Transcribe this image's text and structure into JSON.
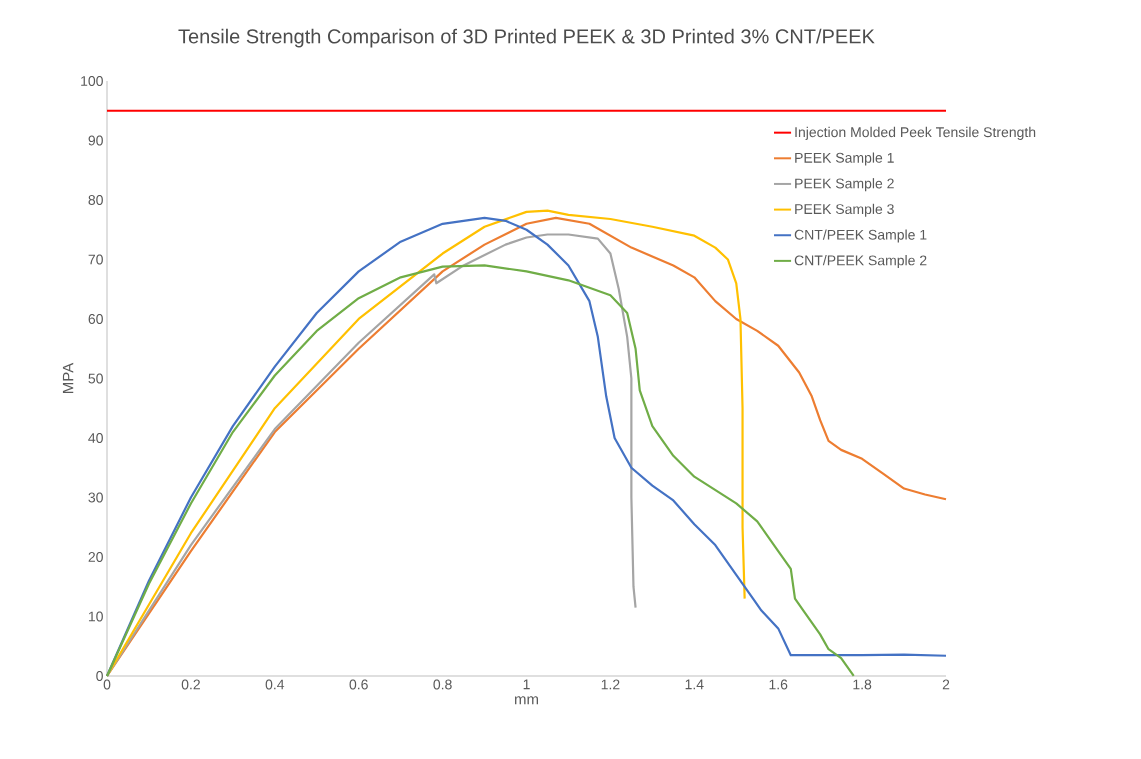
{
  "chart_data": {
    "type": "line",
    "title": "Tensile Strength Comparison of 3D Printed PEEK & 3D Printed 3% CNT/PEEK",
    "xlabel": "mm",
    "ylabel": "MPA",
    "xlim": [
      0,
      2
    ],
    "xticks": [
      0,
      0.2,
      0.4,
      0.6,
      0.8,
      1,
      1.2,
      1.4,
      1.6,
      1.8,
      2
    ],
    "ylim": [
      0,
      100
    ],
    "yticks": [
      0,
      10,
      20,
      30,
      40,
      50,
      60,
      70,
      80,
      90,
      100
    ],
    "grid": false,
    "legend": "top right",
    "marker": "none",
    "line_style": "solid",
    "series": [
      {
        "name": "Injection Molded Peek Tensile Strength",
        "color": "#ff0000",
        "x": [
          0,
          2
        ],
        "values": [
          95,
          95
        ]
      },
      {
        "name": "PEEK Sample 1",
        "color": "#ed7d31",
        "x": [
          0,
          0.2,
          0.4,
          0.6,
          0.8,
          0.9,
          1.0,
          1.07,
          1.15,
          1.25,
          1.35,
          1.4,
          1.45,
          1.5,
          1.55,
          1.6,
          1.65,
          1.68,
          1.7,
          1.72,
          1.75,
          1.8,
          1.85,
          1.9,
          1.95,
          2.0
        ],
        "values": [
          0,
          21,
          41,
          55,
          68,
          72.5,
          76,
          77,
          76,
          72,
          69,
          67,
          63,
          60,
          58,
          55.5,
          51,
          47,
          43,
          39.5,
          38,
          36.5,
          34,
          31.5,
          30.5,
          29.7
        ]
      },
      {
        "name": "PEEK Sample 2",
        "color": "#a5a5a5",
        "x": [
          0,
          0.2,
          0.4,
          0.6,
          0.78,
          0.785,
          0.85,
          0.95,
          1.0,
          1.05,
          1.1,
          1.17,
          1.2,
          1.22,
          1.24,
          1.25,
          1.25,
          1.255,
          1.26
        ],
        "values": [
          0,
          22,
          41.5,
          56,
          67.5,
          66,
          69,
          72.5,
          73.7,
          74.2,
          74.2,
          73.5,
          71,
          65,
          57,
          50,
          30,
          15,
          11.5
        ]
      },
      {
        "name": "PEEK Sample 3",
        "color": "#ffc000",
        "x": [
          0,
          0.2,
          0.4,
          0.6,
          0.8,
          0.9,
          1.0,
          1.05,
          1.1,
          1.2,
          1.3,
          1.4,
          1.45,
          1.48,
          1.5,
          1.51,
          1.515,
          1.515,
          1.52
        ],
        "values": [
          0,
          24,
          45,
          60,
          71,
          75.5,
          78,
          78.2,
          77.5,
          76.8,
          75.5,
          74,
          72,
          70,
          66,
          60,
          45,
          25,
          13
        ]
      },
      {
        "name": "CNT/PEEK Sample 1",
        "color": "#4472c4",
        "x": [
          0,
          0.1,
          0.2,
          0.3,
          0.4,
          0.5,
          0.6,
          0.7,
          0.8,
          0.9,
          0.95,
          1.0,
          1.05,
          1.1,
          1.15,
          1.17,
          1.19,
          1.21,
          1.25,
          1.3,
          1.35,
          1.4,
          1.45,
          1.5,
          1.54,
          1.56,
          1.6,
          1.63,
          1.7,
          1.8,
          1.9,
          2.0
        ],
        "values": [
          0,
          16,
          30,
          42,
          52,
          61,
          68,
          73,
          76,
          77,
          76.5,
          75,
          72.5,
          69,
          63,
          57,
          47,
          40,
          35,
          32,
          29.5,
          25.5,
          22,
          17,
          13,
          11,
          8,
          3.5,
          3.5,
          3.5,
          3.6,
          3.4
        ]
      },
      {
        "name": "CNT/PEEK Sample 2",
        "color": "#70ad47",
        "x": [
          0,
          0.1,
          0.2,
          0.3,
          0.4,
          0.5,
          0.6,
          0.7,
          0.8,
          0.9,
          1.0,
          1.1,
          1.2,
          1.24,
          1.26,
          1.27,
          1.3,
          1.35,
          1.4,
          1.5,
          1.55,
          1.6,
          1.63,
          1.64,
          1.66,
          1.7,
          1.72,
          1.75,
          1.78
        ],
        "values": [
          0,
          15.5,
          29,
          41,
          50.5,
          58,
          63.5,
          67,
          68.8,
          69,
          68,
          66.5,
          64,
          61,
          55,
          48,
          42,
          37,
          33.5,
          29,
          26,
          21,
          18,
          13,
          11,
          7,
          4.5,
          3,
          0
        ]
      }
    ]
  }
}
